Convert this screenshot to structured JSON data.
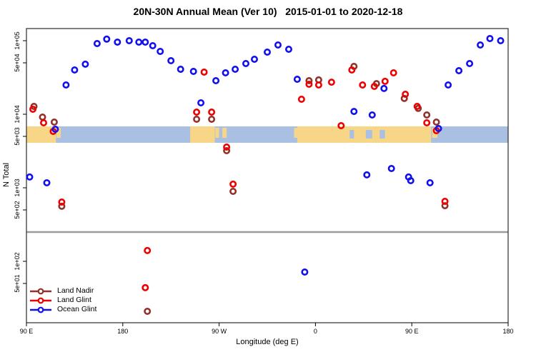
{
  "title": "20N-30N Annual Mean (Ver 10)   2015-01-01 to 2020-12-18",
  "axes": {
    "x": {
      "label": "Longitude (deg E)",
      "ticks": [
        {
          "lon": 90,
          "label": "90 E"
        },
        {
          "lon": 180,
          "label": "180"
        },
        {
          "lon": 270,
          "label": "90 W"
        },
        {
          "lon": 360,
          "label": "0"
        },
        {
          "lon": 450,
          "label": "90 E"
        },
        {
          "lon": 540,
          "label": "180"
        }
      ]
    },
    "y": {
      "label": "N Total",
      "ticks": [
        {
          "value": 100000,
          "label": "1e+05"
        },
        {
          "value": 50000,
          "label": "5e+04"
        },
        {
          "value": 10000,
          "label": "1e+04"
        },
        {
          "value": 5000,
          "label": "5e+03"
        },
        {
          "value": 1000,
          "label": "1e+03"
        },
        {
          "value": 500,
          "label": "5e+02"
        },
        {
          "value": 100,
          "label": "1e+02"
        },
        {
          "value": 50,
          "label": "5e+01"
        }
      ]
    }
  },
  "legend": {
    "position": "bottom-left",
    "items": [
      {
        "label": "Land Nadir",
        "color": "#93302a"
      },
      {
        "label": "Land Glint",
        "color": "#ee0000"
      },
      {
        "label": "Ocean Glint",
        "color": "#1010ee"
      }
    ]
  },
  "threshold_line": {
    "value": 250,
    "color": "#9b9b9b"
  },
  "map_strip": {
    "ocean_color": "#a9c0e2",
    "land_color": "#f8d687",
    "land_segments": [
      {
        "start": 90,
        "end": 117.5,
        "partial": false
      },
      {
        "start": 118,
        "end": 122,
        "partial": true
      },
      {
        "start": 243,
        "end": 266,
        "partial": false
      },
      {
        "start": 266.5,
        "end": 270,
        "partial": true
      },
      {
        "start": 273,
        "end": 277,
        "partial": true
      },
      {
        "start": 340,
        "end": 343,
        "partial": true
      },
      {
        "start": 343,
        "end": 468,
        "partial": false
      },
      {
        "start": 469,
        "end": 474,
        "partial": true
      }
    ],
    "water_patches": [
      {
        "start": 392,
        "end": 396
      },
      {
        "start": 407,
        "end": 413
      },
      {
        "start": 420,
        "end": 425
      }
    ]
  },
  "chart_data": {
    "type": "scatter",
    "title": "20N-30N Annual Mean (Ver 10)   2015-01-01 to 2020-12-18",
    "xlabel": "Longitude (deg E)",
    "ylabel": "N Total",
    "x_range": [
      90,
      540
    ],
    "y_scale": "log",
    "y_range": [
      14.6,
      146000
    ],
    "grid": false,
    "legend_position": "bottom-left",
    "series": [
      {
        "name": "Land Nadir",
        "color": "#93302a",
        "points": [
          [
            97,
            12800
          ],
          [
            105,
            9150
          ],
          [
            116,
            7820
          ],
          [
            123,
            560
          ],
          [
            249,
            8550
          ],
          [
            263,
            8550
          ],
          [
            277,
            3200
          ],
          [
            283,
            894
          ],
          [
            354,
            28600
          ],
          [
            363,
            29300
          ],
          [
            396,
            44700
          ],
          [
            417,
            26100
          ],
          [
            443,
            16400
          ],
          [
            456,
            12000
          ],
          [
            464,
            9780
          ],
          [
            473,
            7820
          ],
          [
            481,
            571
          ],
          [
            203,
            20.9
          ]
        ]
      },
      {
        "name": "Land Glint",
        "color": "#ee0000",
        "points": [
          [
            96,
            11700
          ],
          [
            106,
            7650
          ],
          [
            115,
            5850
          ],
          [
            123,
            640
          ],
          [
            249,
            10700
          ],
          [
            263,
            10700
          ],
          [
            277,
            3580
          ],
          [
            283,
            1120
          ],
          [
            256,
            37400
          ],
          [
            347,
            16000
          ],
          [
            354,
            25600
          ],
          [
            363,
            25000
          ],
          [
            375,
            27300
          ],
          [
            394,
            40000
          ],
          [
            404,
            25000
          ],
          [
            415,
            23900
          ],
          [
            384,
            7000
          ],
          [
            433,
            36600
          ],
          [
            425,
            28000
          ],
          [
            444,
            18700
          ],
          [
            455,
            12800
          ],
          [
            464,
            7650
          ],
          [
            473,
            5980
          ],
          [
            481,
            654
          ],
          [
            203,
            140
          ],
          [
            201,
            43.8
          ]
        ]
      },
      {
        "name": "Ocean Glint",
        "color": "#1010ee",
        "points": [
          [
            127,
            25000
          ],
          [
            135,
            40000
          ],
          [
            145,
            47900
          ],
          [
            156,
            91500
          ],
          [
            165,
            105000
          ],
          [
            175,
            95600
          ],
          [
            186,
            100000
          ],
          [
            195,
            95600
          ],
          [
            201,
            95600
          ],
          [
            208,
            85500
          ],
          [
            215,
            71500
          ],
          [
            225,
            53500
          ],
          [
            234,
            40900
          ],
          [
            246,
            38200
          ],
          [
            253,
            14300
          ],
          [
            267,
            28600
          ],
          [
            276,
            36600
          ],
          [
            285,
            40900
          ],
          [
            295,
            48900
          ],
          [
            303,
            55900
          ],
          [
            315,
            69900
          ],
          [
            325,
            87400
          ],
          [
            335,
            76500
          ],
          [
            343,
            29900
          ],
          [
            396,
            10900
          ],
          [
            413,
            9780
          ],
          [
            424,
            22400
          ],
          [
            484,
            25000
          ],
          [
            494,
            39100
          ],
          [
            504,
            48900
          ],
          [
            514,
            87400
          ],
          [
            523,
            107000
          ],
          [
            533,
            100000
          ],
          [
            117,
            6250
          ],
          [
            475,
            6390
          ],
          [
            93,
            1400
          ],
          [
            109,
            1170
          ],
          [
            408,
            1500
          ],
          [
            431,
            1830
          ],
          [
            447,
            1400
          ],
          [
            449,
            1250
          ],
          [
            467,
            1170
          ],
          [
            350,
            71.5
          ]
        ]
      }
    ]
  }
}
